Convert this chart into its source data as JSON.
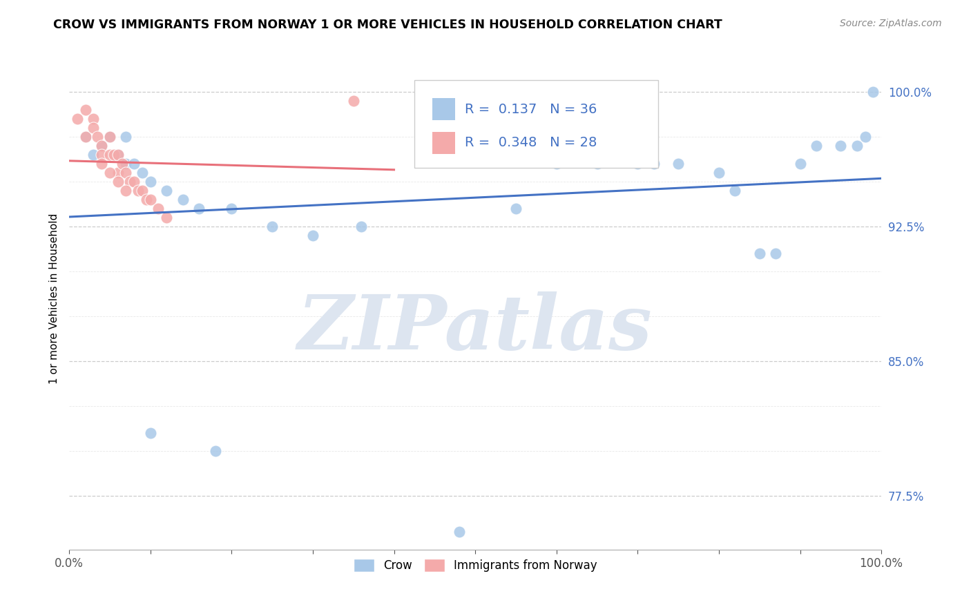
{
  "title": "CROW VS IMMIGRANTS FROM NORWAY 1 OR MORE VEHICLES IN HOUSEHOLD CORRELATION CHART",
  "source": "Source: ZipAtlas.com",
  "ylabel": "1 or more Vehicles in Household",
  "xlim": [
    0.0,
    1.0
  ],
  "ylim": [
    0.745,
    1.025
  ],
  "ytick_positions": [
    0.775,
    0.8,
    0.825,
    0.85,
    0.875,
    0.9,
    0.925,
    0.95,
    0.975,
    1.0
  ],
  "ytick_labels": [
    "77.5%",
    "",
    "",
    "85.0%",
    "",
    "",
    "92.5%",
    "",
    "",
    "100.0%"
  ],
  "xtick_positions": [
    0.0,
    0.1,
    0.2,
    0.3,
    0.4,
    0.5,
    0.6,
    0.7,
    0.8,
    0.9,
    1.0
  ],
  "xtick_labels": [
    "0.0%",
    "",
    "",
    "",
    "",
    "",
    "",
    "",
    "",
    "",
    "100.0%"
  ],
  "legend_label1": "Crow",
  "legend_label2": "Immigrants from Norway",
  "R1": 0.137,
  "N1": 36,
  "R2": 0.348,
  "N2": 28,
  "blue_color": "#a8c8e8",
  "pink_color": "#f4aaaa",
  "blue_line_color": "#4472c4",
  "pink_line_color": "#e8707a",
  "watermark": "ZIPatlas",
  "watermark_color": "#dde5f0",
  "crow_x": [
    0.02,
    0.03,
    0.04,
    0.05,
    0.06,
    0.07,
    0.07,
    0.08,
    0.09,
    0.1,
    0.12,
    0.14,
    0.16,
    0.2,
    0.25,
    0.36,
    0.55,
    0.6,
    0.65,
    0.7,
    0.72,
    0.75,
    0.8,
    0.82,
    0.85,
    0.87,
    0.9,
    0.92,
    0.95,
    0.97,
    0.98,
    0.99,
    0.1,
    0.18,
    0.3,
    0.48
  ],
  "crow_y": [
    0.975,
    0.965,
    0.97,
    0.975,
    0.965,
    0.975,
    0.96,
    0.96,
    0.955,
    0.95,
    0.945,
    0.94,
    0.935,
    0.935,
    0.925,
    0.925,
    0.935,
    0.96,
    0.96,
    0.96,
    0.96,
    0.96,
    0.955,
    0.945,
    0.91,
    0.91,
    0.96,
    0.97,
    0.97,
    0.97,
    0.975,
    1.0,
    0.81,
    0.8,
    0.92,
    0.755
  ],
  "norway_x": [
    0.01,
    0.02,
    0.02,
    0.03,
    0.03,
    0.035,
    0.04,
    0.04,
    0.05,
    0.05,
    0.055,
    0.06,
    0.06,
    0.065,
    0.07,
    0.075,
    0.08,
    0.085,
    0.09,
    0.095,
    0.1,
    0.11,
    0.12,
    0.04,
    0.05,
    0.06,
    0.07,
    0.35
  ],
  "norway_y": [
    0.985,
    0.99,
    0.975,
    0.985,
    0.98,
    0.975,
    0.97,
    0.965,
    0.975,
    0.965,
    0.965,
    0.965,
    0.955,
    0.96,
    0.955,
    0.95,
    0.95,
    0.945,
    0.945,
    0.94,
    0.94,
    0.935,
    0.93,
    0.96,
    0.955,
    0.95,
    0.945,
    0.995
  ]
}
